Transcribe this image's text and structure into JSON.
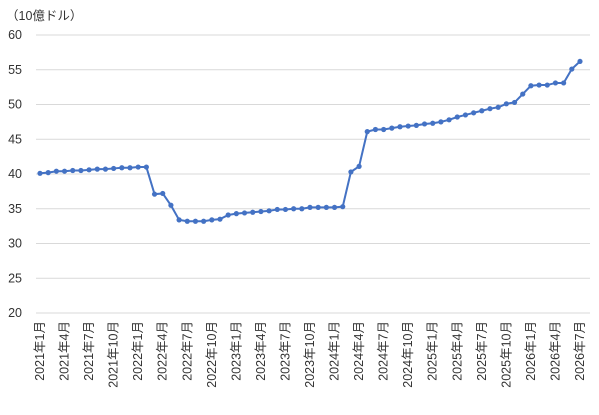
{
  "chart_data": {
    "type": "line",
    "ylabel": "（10億ドル）",
    "categories": [
      "2021年1月",
      null,
      null,
      "2021年4月",
      null,
      null,
      "2021年7月",
      null,
      null,
      "2021年10月",
      null,
      null,
      "2022年1月",
      null,
      null,
      "2022年4月",
      null,
      null,
      "2022年7月",
      null,
      null,
      "2022年10月",
      null,
      null,
      "2023年1月",
      null,
      null,
      "2023年4月",
      null,
      null,
      "2023年7月",
      null,
      null,
      "2023年10月",
      null,
      null,
      "2024年1月",
      null,
      null,
      "2024年4月",
      null,
      null,
      "2024年7月",
      null,
      null,
      "2024年10月",
      null,
      null,
      "2025年1月",
      null,
      null,
      "2025年4月",
      null,
      null,
      "2025年7月",
      null,
      null,
      "2025年10月",
      null,
      null,
      "2026年1月",
      null,
      null,
      "2026年4月",
      null,
      null,
      "2026年7月"
    ],
    "series": [
      {
        "color": "#4472c4",
        "values": [
          40.1,
          40.2,
          40.4,
          40.4,
          40.5,
          40.5,
          40.6,
          40.7,
          40.7,
          40.8,
          40.9,
          40.9,
          41.0,
          41.0,
          37.1,
          37.2,
          35.5,
          33.4,
          33.2,
          33.2,
          33.2,
          33.4,
          33.5,
          34.1,
          34.3,
          34.4,
          34.5,
          34.6,
          34.7,
          34.9,
          34.9,
          35.0,
          35.0,
          35.2,
          35.2,
          35.2,
          35.2,
          35.3,
          40.3,
          41.1,
          46.1,
          46.4,
          46.4,
          46.6,
          46.8,
          46.9,
          47.0,
          47.2,
          47.3,
          47.5,
          47.8,
          48.2,
          48.5,
          48.8,
          49.1,
          49.4,
          49.6,
          50.1,
          50.3,
          51.5,
          52.7,
          52.8,
          52.8,
          53.1,
          53.1,
          55.1,
          56.2
        ]
      }
    ],
    "ylim": [
      20,
      60
    ],
    "yticks": [
      20,
      25,
      30,
      35,
      40,
      45,
      50,
      55,
      60
    ],
    "grid": true
  }
}
